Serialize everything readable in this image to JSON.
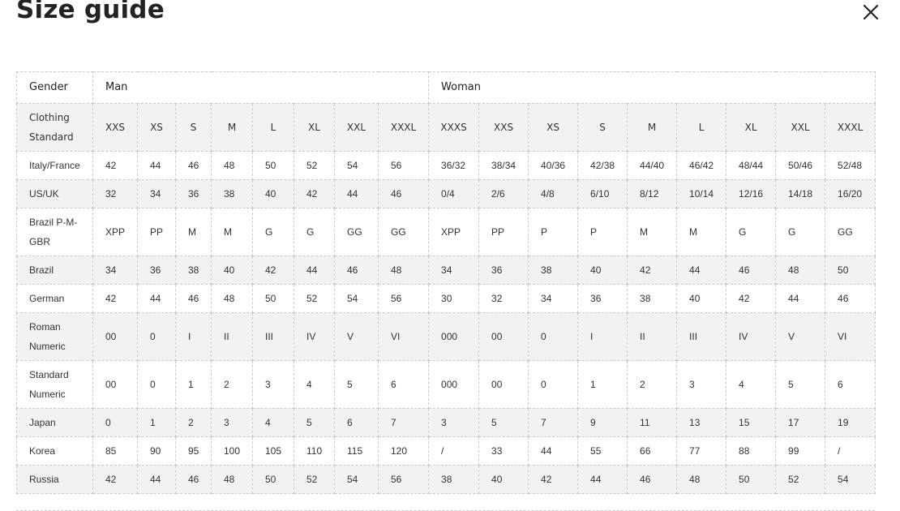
{
  "title": "Size guide",
  "close_icon": "close-icon",
  "gender": {
    "label": "Gender",
    "man": "Man",
    "woman": "Woman"
  },
  "standard": {
    "label": "Clothing Standard",
    "man": [
      "XXS",
      "XS",
      "S",
      "M",
      "L",
      "XL",
      "XXL",
      "XXXL"
    ],
    "woman": [
      "XXXS",
      "XXS",
      "XS",
      "S",
      "M",
      "L",
      "XL",
      "XXL",
      "XXXL"
    ]
  },
  "rows": [
    {
      "label": "Italy/France",
      "values": [
        "42",
        "44",
        "46",
        "48",
        "50",
        "52",
        "54",
        "56",
        "36/32",
        "38/34",
        "40/36",
        "42/38",
        "44/40",
        "46/42",
        "48/44",
        "50/46",
        "52/48"
      ]
    },
    {
      "label": "US/UK",
      "values": [
        "32",
        "34",
        "36",
        "38",
        "40",
        "42",
        "44",
        "46",
        "0/4",
        "2/6",
        "4/8",
        "6/10",
        "8/12",
        "10/14",
        "12/16",
        "14/18",
        "16/20"
      ]
    },
    {
      "label": "Brazil P-M-GBR",
      "values": [
        "XPP",
        "PP",
        "M",
        "M",
        "G",
        "G",
        "GG",
        "GG",
        "XPP",
        "PP",
        "P",
        "P",
        "M",
        "M",
        "G",
        "G",
        "GG"
      ]
    },
    {
      "label": "Brazil",
      "values": [
        "34",
        "36",
        "38",
        "40",
        "42",
        "44",
        "46",
        "48",
        "34",
        "36",
        "38",
        "40",
        "42",
        "44",
        "46",
        "48",
        "50"
      ]
    },
    {
      "label": "German",
      "values": [
        "42",
        "44",
        "46",
        "48",
        "50",
        "52",
        "54",
        "56",
        "30",
        "32",
        "34",
        "36",
        "38",
        "40",
        "42",
        "44",
        "46"
      ]
    },
    {
      "label": "Roman Numeric",
      "values": [
        "00",
        "0",
        "I",
        "II",
        "III",
        "IV",
        "V",
        "VI",
        "000",
        "00",
        "0",
        "I",
        "II",
        "III",
        "IV",
        "V",
        "VI"
      ]
    },
    {
      "label": "Standard Numeric",
      "values": [
        "00",
        "0",
        "1",
        "2",
        "3",
        "4",
        "5",
        "6",
        "000",
        "00",
        "0",
        "1",
        "2",
        "3",
        "4",
        "5",
        "6"
      ]
    },
    {
      "label": "Japan",
      "values": [
        "0",
        "1",
        "2",
        "3",
        "4",
        "5",
        "6",
        "7",
        "3",
        "5",
        "7",
        "9",
        "11",
        "13",
        "15",
        "17",
        "19"
      ]
    },
    {
      "label": "Korea",
      "values": [
        "85",
        "90",
        "95",
        "100",
        "105",
        "110",
        "115",
        "120",
        "/",
        "33",
        "44",
        "55",
        "66",
        "77",
        "88",
        "99",
        "/"
      ]
    },
    {
      "label": "Russia",
      "values": [
        "42",
        "44",
        "46",
        "48",
        "50",
        "52",
        "54",
        "56",
        "38",
        "40",
        "42",
        "44",
        "46",
        "48",
        "50",
        "52",
        "54"
      ]
    }
  ]
}
